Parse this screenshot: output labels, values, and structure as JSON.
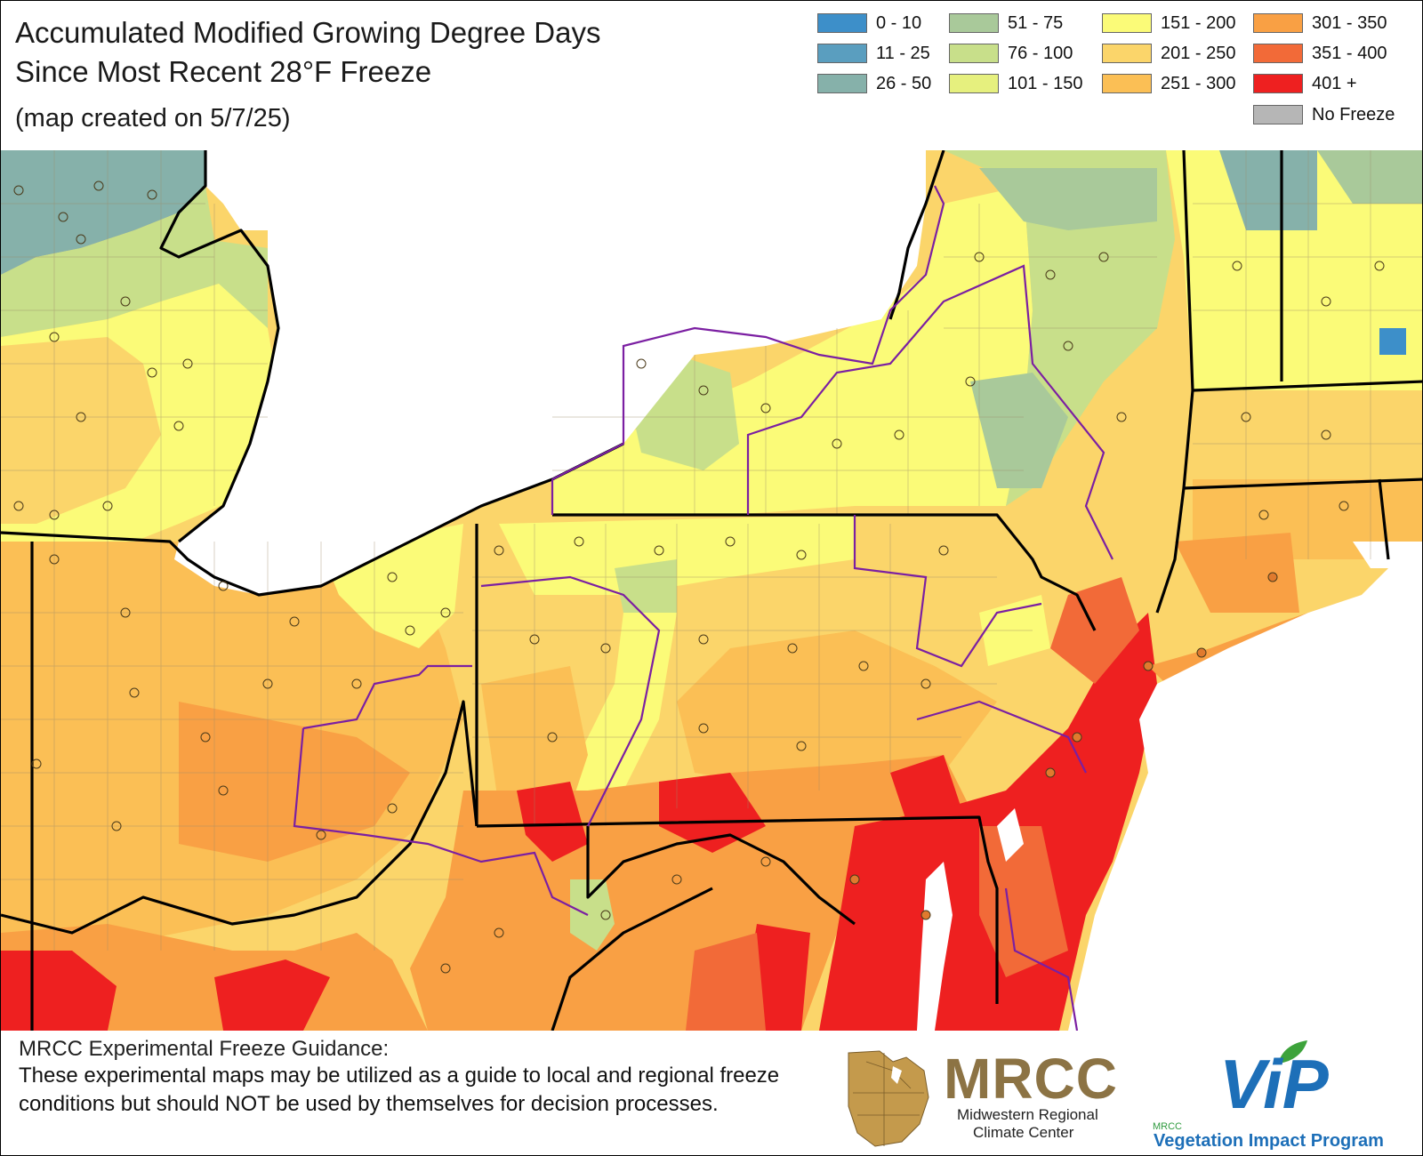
{
  "title_lines": [
    "Accumulated Modified Growing Degree Days",
    "Since Most Recent 28°F Freeze"
  ],
  "created": "(map created on 5/7/25)",
  "legend": [
    {
      "label": "0 - 10",
      "color": "#3d8fc9"
    },
    {
      "label": "11 - 25",
      "color": "#5a9ebf"
    },
    {
      "label": "26 - 50",
      "color": "#86b1aa"
    },
    {
      "label": "51 - 75",
      "color": "#a9c99a"
    },
    {
      "label": "76 - 100",
      "color": "#c8df8a"
    },
    {
      "label": "101 - 150",
      "color": "#e6f07e"
    },
    {
      "label": "151 - 200",
      "color": "#fbfb78"
    },
    {
      "label": "201 - 250",
      "color": "#fbd56a"
    },
    {
      "label": "251 - 300",
      "color": "#fbbf55"
    },
    {
      "label": "301 - 350",
      "color": "#f9a044"
    },
    {
      "label": "351 - 400",
      "color": "#f26a38"
    },
    {
      "label": "401 +",
      "color": "#ee2020"
    },
    {
      "label": "No Freeze",
      "color": "#b6b6b6"
    }
  ],
  "disclaimer": {
    "title": "MRCC Experimental Freeze Guidance:",
    "body": "These experimental maps may be utilized as a guide to local and regional freeze conditions but should NOT be used by themselves for decision processes."
  },
  "logos": {
    "mrcc": "MRCC",
    "mrcc_line1": "Midwestern Regional",
    "mrcc_line2": "Climate Center",
    "vip_small": "MRCC",
    "vip": "ViP",
    "vip_line": "Vegetation Impact Program"
  }
}
